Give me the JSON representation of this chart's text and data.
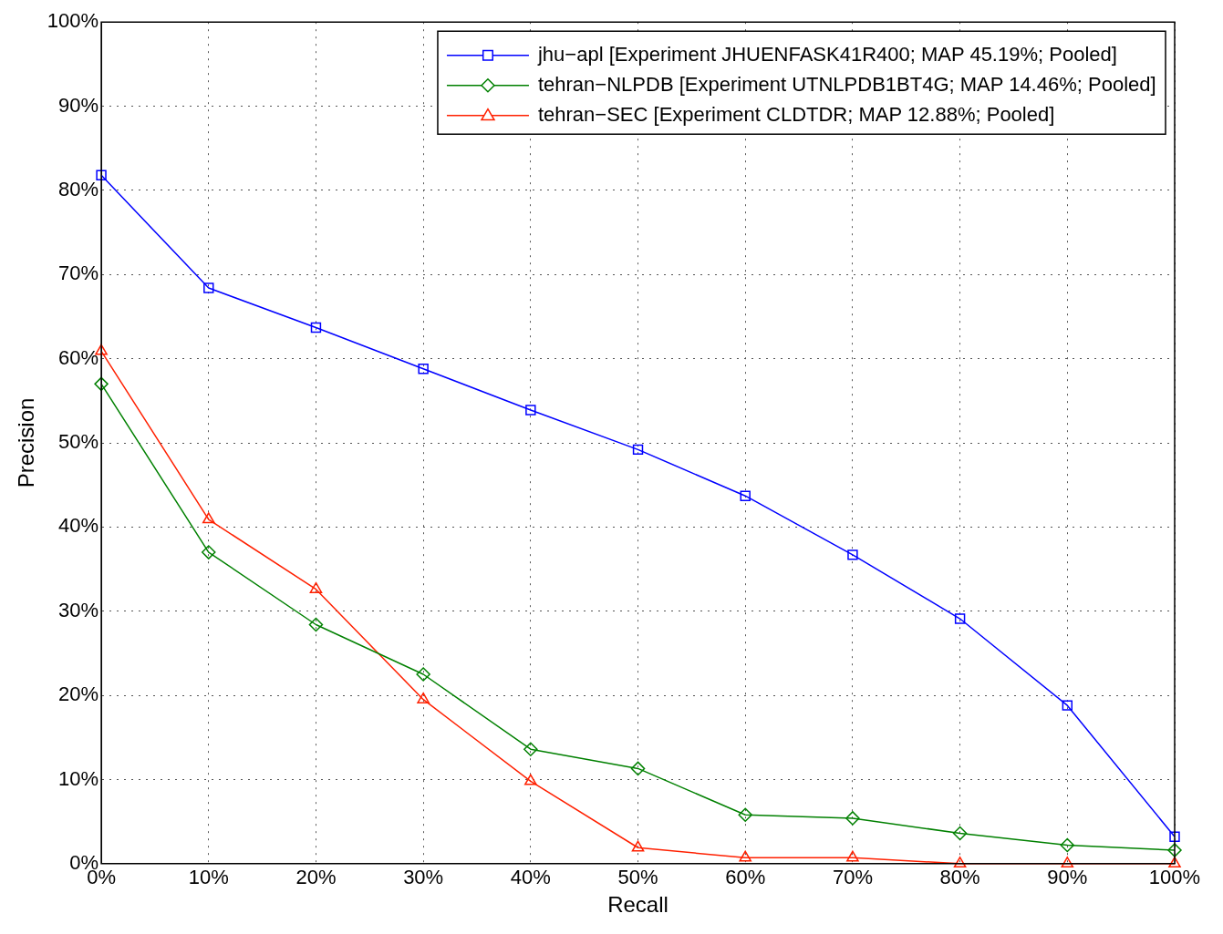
{
  "chart_data": {
    "type": "line",
    "xlabel": "Recall",
    "ylabel": "Precision",
    "x": [
      0,
      10,
      20,
      30,
      40,
      50,
      60,
      70,
      80,
      90,
      100
    ],
    "xlim": [
      0,
      100
    ],
    "ylim": [
      0,
      100
    ],
    "xticks": [
      {
        "value": 0,
        "label": "0%"
      },
      {
        "value": 10,
        "label": "10%"
      },
      {
        "value": 20,
        "label": "20%"
      },
      {
        "value": 30,
        "label": "30%"
      },
      {
        "value": 40,
        "label": "40%"
      },
      {
        "value": 50,
        "label": "50%"
      },
      {
        "value": 60,
        "label": "60%"
      },
      {
        "value": 70,
        "label": "70%"
      },
      {
        "value": 80,
        "label": "80%"
      },
      {
        "value": 90,
        "label": "90%"
      },
      {
        "value": 100,
        "label": "100%"
      }
    ],
    "yticks": [
      {
        "value": 0,
        "label": "0%"
      },
      {
        "value": 10,
        "label": "10%"
      },
      {
        "value": 20,
        "label": "20%"
      },
      {
        "value": 30,
        "label": "30%"
      },
      {
        "value": 40,
        "label": "40%"
      },
      {
        "value": 50,
        "label": "50%"
      },
      {
        "value": 60,
        "label": "60%"
      },
      {
        "value": 70,
        "label": "70%"
      },
      {
        "value": 80,
        "label": "80%"
      },
      {
        "value": 90,
        "label": "90%"
      },
      {
        "value": 100,
        "label": "100%"
      }
    ],
    "grid": true,
    "legend": "top right",
    "line_style": "solid",
    "series": [
      {
        "name": "jhu−apl [Experiment JHUENFASK41R400; MAP 45.19%; Pooled]",
        "color": "#0000ff",
        "marker": "square",
        "values": [
          81.8,
          68.4,
          63.7,
          58.8,
          53.9,
          49.2,
          43.7,
          36.7,
          29.1,
          18.8,
          3.2
        ]
      },
      {
        "name": "tehran−NLPDB [Experiment UTNLPDB1BT4G; MAP 14.46%; Pooled]",
        "color": "#008000",
        "marker": "diamond",
        "values": [
          57.0,
          37.0,
          28.4,
          22.5,
          13.6,
          11.3,
          5.8,
          5.4,
          3.6,
          2.2,
          1.6
        ]
      },
      {
        "name": "tehran−SEC [Experiment CLDTDR; MAP 12.88%; Pooled]",
        "color": "#ff2000",
        "marker": "triangle",
        "values": [
          60.9,
          40.9,
          32.6,
          19.5,
          9.8,
          1.9,
          0.7,
          0.7,
          0,
          0,
          0
        ]
      }
    ]
  }
}
